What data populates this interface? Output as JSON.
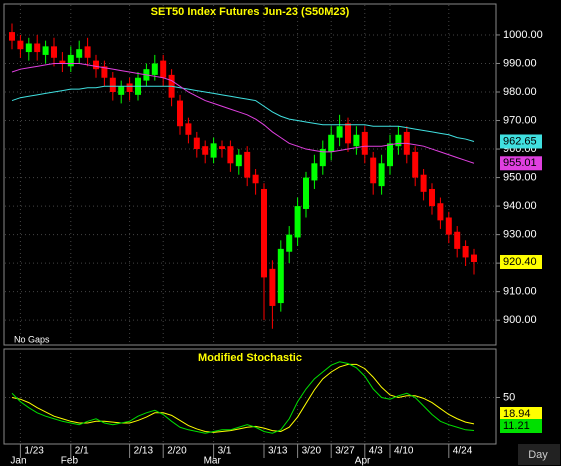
{
  "chart_data": [
    {
      "type": "candlestick",
      "title": "SET50  Index  Futures  Jun-23  (S50M23)",
      "note": "No  Gaps",
      "x_unit": "Day",
      "categories": [
        null,
        "1/23",
        null,
        null,
        null,
        null,
        null,
        "2/1",
        null,
        null,
        null,
        null,
        null,
        null,
        "2/13",
        null,
        null,
        null,
        "2/20",
        null,
        null,
        null,
        null,
        null,
        "3/1",
        null,
        null,
        null,
        null,
        null,
        "3/13",
        null,
        null,
        null,
        "3/20",
        null,
        null,
        null,
        "3/27",
        null,
        null,
        null,
        "4/3",
        null,
        null,
        "4/10",
        null,
        null,
        null,
        null,
        null,
        null,
        "4/24",
        null,
        null,
        null
      ],
      "months": [
        null,
        "Jan",
        null,
        null,
        null,
        null,
        null,
        "Feb",
        null,
        null,
        null,
        null,
        null,
        null,
        null,
        null,
        null,
        null,
        null,
        null,
        null,
        null,
        null,
        null,
        "Mar",
        null,
        null,
        null,
        null,
        null,
        null,
        null,
        null,
        null,
        null,
        null,
        null,
        null,
        null,
        null,
        null,
        null,
        "Apr",
        null,
        null,
        null,
        null,
        null,
        null,
        null,
        null,
        null,
        null,
        null,
        null,
        null
      ],
      "open": [
        1001,
        998,
        994,
        997,
        993,
        996,
        991,
        989,
        992,
        996,
        991,
        989,
        985,
        979,
        983,
        979,
        984,
        986,
        991,
        986,
        977,
        969,
        964,
        961,
        957,
        961,
        961,
        954,
        959,
        951,
        946,
        918,
        906,
        924,
        929,
        939,
        949,
        954,
        959,
        964,
        969,
        961,
        966,
        957,
        947,
        954,
        961,
        966,
        959,
        951,
        946,
        941,
        936,
        931,
        926,
        923
      ],
      "high": [
        1004,
        1000,
        999,
        1000,
        998,
        999,
        994,
        996,
        998,
        999,
        993,
        991,
        987,
        984,
        985,
        987,
        990,
        993,
        993,
        988,
        979,
        971,
        966,
        963,
        964,
        963,
        963,
        960,
        961,
        953,
        948,
        921,
        928,
        933,
        943,
        952,
        958,
        963,
        968,
        972,
        971,
        968,
        968,
        959,
        958,
        965,
        968,
        968,
        961,
        953,
        948,
        943,
        938,
        933,
        928,
        925
      ],
      "low": [
        995,
        992,
        991,
        991,
        990,
        989,
        987,
        987,
        990,
        989,
        985,
        982,
        977,
        976,
        977,
        977,
        982,
        984,
        982,
        975,
        965,
        962,
        957,
        955,
        955,
        957,
        952,
        951,
        947,
        944,
        900,
        897,
        903,
        920,
        926,
        936,
        946,
        951,
        956,
        961,
        959,
        958,
        955,
        944,
        944,
        951,
        958,
        955,
        947,
        942,
        937,
        932,
        927,
        922,
        919,
        916
      ],
      "close": [
        998,
        995,
        997,
        994,
        996,
        992,
        990,
        993,
        995,
        992,
        988,
        985,
        980,
        982,
        980,
        985,
        988,
        990,
        985,
        978,
        968,
        965,
        960,
        958,
        962,
        960,
        955,
        958,
        950,
        948,
        915,
        905,
        925,
        930,
        940,
        950,
        955,
        960,
        965,
        968,
        962,
        965,
        958,
        948,
        955,
        962,
        965,
        958,
        950,
        945,
        940,
        935,
        930,
        925,
        922,
        920.4
      ],
      "close_label": "920.40",
      "up_color": "#00ff00",
      "down_color": "#ff0000",
      "label_color": "#ffff00",
      "overlays": [
        {
          "color": "#40e0e0",
          "values": [
            977,
            978,
            978.5,
            979,
            979.5,
            980,
            980.5,
            981,
            981,
            981.5,
            981.5,
            982,
            982,
            982,
            982,
            982,
            982,
            982,
            982,
            982,
            981.5,
            981,
            980.5,
            980,
            979.5,
            979,
            978.5,
            978,
            977.5,
            977,
            975,
            973,
            971.5,
            970.5,
            970,
            969.5,
            969,
            968.5,
            968.5,
            968.5,
            968.5,
            968.5,
            968.5,
            968,
            968,
            968,
            968,
            967.5,
            967,
            966.5,
            966,
            965.5,
            965,
            964,
            963.5,
            962.65
          ]
        },
        {
          "color": "#e040e0",
          "values": [
            987,
            988,
            988.5,
            989,
            989.5,
            990,
            990,
            990,
            990,
            989.5,
            989,
            988.5,
            988,
            987.5,
            987,
            986.5,
            986,
            985.5,
            985,
            984,
            982,
            980,
            978.5,
            977,
            976,
            975,
            974,
            973,
            972,
            970.5,
            968.5,
            966,
            964,
            962,
            961,
            960,
            959.5,
            959,
            959,
            959.5,
            960,
            960.5,
            961,
            961,
            961,
            961.5,
            962,
            962,
            961.5,
            961,
            960,
            959,
            958,
            957,
            956,
            955.01
          ]
        }
      ],
      "ylim": [
        891.3,
        1010.5
      ],
      "yticks": [
        {
          "value": 900,
          "label": "900.00"
        },
        {
          "value": 910,
          "label": "910.00"
        },
        {
          "value": 920,
          "label": "920.00"
        },
        {
          "value": 930,
          "label": "930.00"
        },
        {
          "value": 940,
          "label": "940.00"
        },
        {
          "value": 950,
          "label": "950.00"
        },
        {
          "value": 960,
          "label": "960.00"
        },
        {
          "value": 970,
          "label": "970.00"
        },
        {
          "value": 980,
          "label": "980.00"
        },
        {
          "value": 990,
          "label": "990.00"
        },
        {
          "value": 1000,
          "label": "1000.00"
        }
      ],
      "grid": true
    },
    {
      "type": "line",
      "title": "Modified  Stochastic",
      "series": [
        {
          "color": "#ffff00",
          "values": [
            50,
            48,
            44,
            38,
            33,
            28,
            25,
            22,
            20,
            20,
            22,
            22,
            21,
            20,
            20,
            23,
            27,
            32,
            32,
            29,
            23,
            17,
            13,
            10,
            9,
            10,
            11,
            13,
            15,
            16,
            14,
            11,
            10,
            15,
            27,
            43,
            59,
            72,
            80,
            86,
            89,
            89,
            84,
            74,
            62,
            53,
            50,
            52,
            52,
            49,
            44,
            37,
            30,
            25,
            21,
            18.94
          ]
        },
        {
          "color": "#00e000",
          "values": [
            55,
            45,
            38,
            32,
            28,
            25,
            22,
            20,
            18,
            22,
            25,
            20,
            18,
            20,
            22,
            28,
            32,
            35,
            30,
            22,
            15,
            12,
            10,
            8,
            10,
            12,
            12,
            15,
            18,
            15,
            10,
            8,
            12,
            25,
            45,
            60,
            72,
            80,
            88,
            92,
            90,
            85,
            75,
            60,
            50,
            48,
            52,
            55,
            50,
            40,
            30,
            22,
            18,
            15,
            12,
            11.21
          ]
        }
      ],
      "ylim": [
        0,
        100
      ],
      "yticks": [
        50
      ],
      "grid": true
    }
  ]
}
